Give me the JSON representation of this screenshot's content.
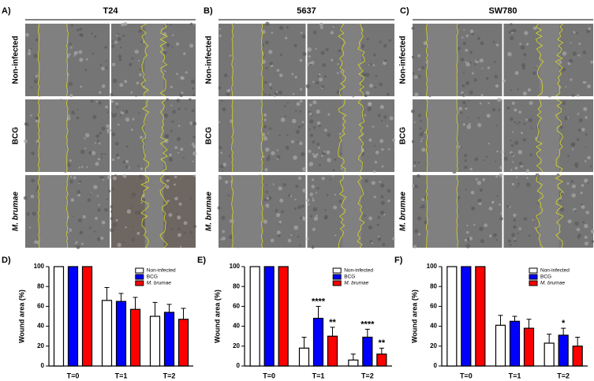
{
  "image_panels": [
    {
      "label": "A)",
      "title": "T24"
    },
    {
      "label": "B)",
      "title": "5637"
    },
    {
      "label": "C)",
      "title": "SW780"
    }
  ],
  "row_labels": [
    "Non-infected",
    "BCG",
    "M. brumae"
  ],
  "chart_data": [
    {
      "type": "bar",
      "panel_label": "D)",
      "ylabel": "Wound area (%)",
      "categories": [
        "T=0",
        "T=1",
        "T=2"
      ],
      "ylim": [
        0,
        100
      ],
      "yticks": [
        0,
        20,
        40,
        60,
        80,
        100
      ],
      "legend": "upper right",
      "series": [
        {
          "name": "Non-infected",
          "color": "#ffffff",
          "values": [
            100,
            66,
            50
          ],
          "errors": [
            0,
            13,
            14
          ]
        },
        {
          "name": "BCG",
          "color": "#0000ff",
          "values": [
            100,
            65,
            54
          ],
          "errors": [
            0,
            8,
            8
          ]
        },
        {
          "name": "M. brumae",
          "color": "#ff0000",
          "values": [
            100,
            57,
            47
          ],
          "errors": [
            0,
            12,
            11
          ]
        }
      ]
    },
    {
      "type": "bar",
      "panel_label": "E)",
      "ylabel": "Wound area (%)",
      "categories": [
        "T=0",
        "T=1",
        "T=2"
      ],
      "ylim": [
        0,
        100
      ],
      "yticks": [
        0,
        20,
        40,
        60,
        80,
        100
      ],
      "legend": "upper right",
      "series": [
        {
          "name": "Non-infected",
          "color": "#ffffff",
          "values": [
            100,
            18,
            6
          ],
          "errors": [
            0,
            11,
            6
          ]
        },
        {
          "name": "BCG",
          "color": "#0000ff",
          "values": [
            100,
            48,
            29
          ],
          "errors": [
            0,
            12,
            8
          ],
          "annotations": [
            null,
            "****",
            "****"
          ]
        },
        {
          "name": "M. brumae",
          "color": "#ff0000",
          "values": [
            100,
            30,
            12
          ],
          "errors": [
            0,
            9,
            6
          ],
          "annotations": [
            null,
            "**",
            "**"
          ]
        }
      ]
    },
    {
      "type": "bar",
      "panel_label": "F)",
      "ylabel": "Wound area (%)",
      "categories": [
        "T=0",
        "T=1",
        "T=2"
      ],
      "ylim": [
        0,
        100
      ],
      "yticks": [
        0,
        20,
        40,
        60,
        80,
        100
      ],
      "legend": "upper right",
      "series": [
        {
          "name": "Non-infected",
          "color": "#ffffff",
          "values": [
            100,
            41,
            23
          ],
          "errors": [
            0,
            10,
            9
          ]
        },
        {
          "name": "BCG",
          "color": "#0000ff",
          "values": [
            100,
            45,
            31
          ],
          "errors": [
            0,
            5,
            7
          ],
          "annotations": [
            null,
            null,
            "*"
          ]
        },
        {
          "name": "M. brumae",
          "color": "#ff0000",
          "values": [
            100,
            38,
            20
          ],
          "errors": [
            0,
            9,
            9
          ]
        }
      ]
    }
  ]
}
